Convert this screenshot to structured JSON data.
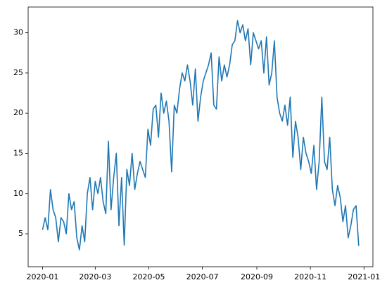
{
  "chart_data": {
    "type": "line",
    "x": [
      0,
      3,
      6,
      9,
      12,
      15,
      18,
      21,
      24,
      27,
      30,
      33,
      36,
      39,
      42,
      45,
      48,
      51,
      54,
      57,
      60,
      63,
      66,
      69,
      72,
      75,
      78,
      81,
      84,
      87,
      90,
      93,
      96,
      99,
      102,
      105,
      108,
      111,
      114,
      117,
      120,
      123,
      126,
      129,
      132,
      135,
      138,
      141,
      144,
      147,
      150,
      153,
      156,
      159,
      162,
      165,
      168,
      171,
      174,
      177,
      180,
      183,
      186,
      189,
      192,
      195,
      198,
      201,
      204,
      207,
      210,
      213,
      216,
      219,
      222,
      225,
      228,
      231,
      234,
      237,
      240,
      243,
      246,
      249,
      252,
      255,
      258,
      261,
      264,
      267,
      270,
      273,
      276,
      279,
      282,
      285,
      288,
      291,
      294,
      297,
      300,
      303,
      306,
      309,
      312,
      315,
      318,
      321,
      324,
      327,
      330,
      333,
      336,
      339,
      342,
      345,
      348,
      351,
      354,
      357,
      360
    ],
    "values": [
      5.5,
      7,
      5.5,
      10.5,
      8,
      7,
      4,
      7,
      6.5,
      5,
      10,
      8,
      9,
      4.5,
      3,
      6,
      4,
      10,
      12,
      8,
      11.5,
      10,
      12,
      9,
      7.5,
      16.5,
      8,
      12,
      15,
      6,
      12,
      3.6,
      13,
      11,
      15,
      10.5,
      12.5,
      14,
      13,
      12,
      18,
      16,
      20.5,
      21,
      17,
      22.5,
      20,
      21.5,
      19,
      12.7,
      21,
      20,
      23,
      25,
      24,
      26,
      24,
      21,
      25.5,
      19,
      22,
      24,
      25,
      26,
      27.5,
      21,
      20.5,
      27,
      24,
      26,
      24.5,
      26,
      28.5,
      29,
      31.5,
      30,
      31,
      29,
      30.5,
      26,
      30,
      29,
      28,
      29,
      25,
      29.5,
      23.5,
      25,
      29,
      22,
      20,
      19,
      21,
      18.5,
      22,
      14.5,
      19,
      17,
      13,
      17,
      15,
      14,
      12.5,
      16,
      10.5,
      14,
      22,
      14,
      13,
      17,
      10.5,
      8.5,
      11,
      9.5,
      6.5,
      8.5,
      4.5,
      6,
      8,
      8.5,
      3.5
    ],
    "color": "#1f77b4",
    "xlim": [
      -16.4,
      376.2
    ],
    "xticks": [
      {
        "value": 0,
        "label": "2020-01"
      },
      {
        "value": 60,
        "label": "2020-03"
      },
      {
        "value": 121,
        "label": "2020-05"
      },
      {
        "value": 182,
        "label": "2020-07"
      },
      {
        "value": 244,
        "label": "2020-09"
      },
      {
        "value": 305,
        "label": "2020-11"
      },
      {
        "value": 366,
        "label": "2021-01"
      }
    ],
    "ylim": [
      0.9,
      33.2
    ],
    "yticks": [
      5,
      10,
      15,
      20,
      25,
      30
    ]
  }
}
